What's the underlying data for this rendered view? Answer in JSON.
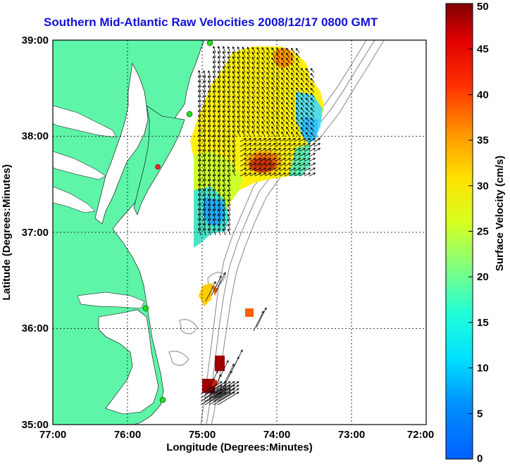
{
  "title": "Southern Mid-Atlantic Raw Velocities 2008/12/17 0800 GMT",
  "xlabel": "Longitude (Degrees:Minutes)",
  "ylabel": "Latitude (Degrees:Minutes)",
  "x_ticks": [
    "77:00",
    "76:00",
    "75:00",
    "74:00",
    "73:00",
    "72:00"
  ],
  "y_ticks": [
    "39:00",
    "38:00",
    "37:00",
    "36:00",
    "35:00"
  ],
  "colorbar": {
    "label": "Surface Velocity (cm/s)",
    "ticks": [
      "50",
      "45",
      "40",
      "35",
      "30",
      "25",
      "20",
      "15",
      "10",
      "5",
      "0"
    ],
    "range": [
      0,
      50
    ]
  },
  "map": {
    "lon_range": [
      -77,
      -72
    ],
    "lat_range": [
      35,
      39
    ],
    "land_color": "#5ef5a8",
    "grid": "dotted"
  }
}
